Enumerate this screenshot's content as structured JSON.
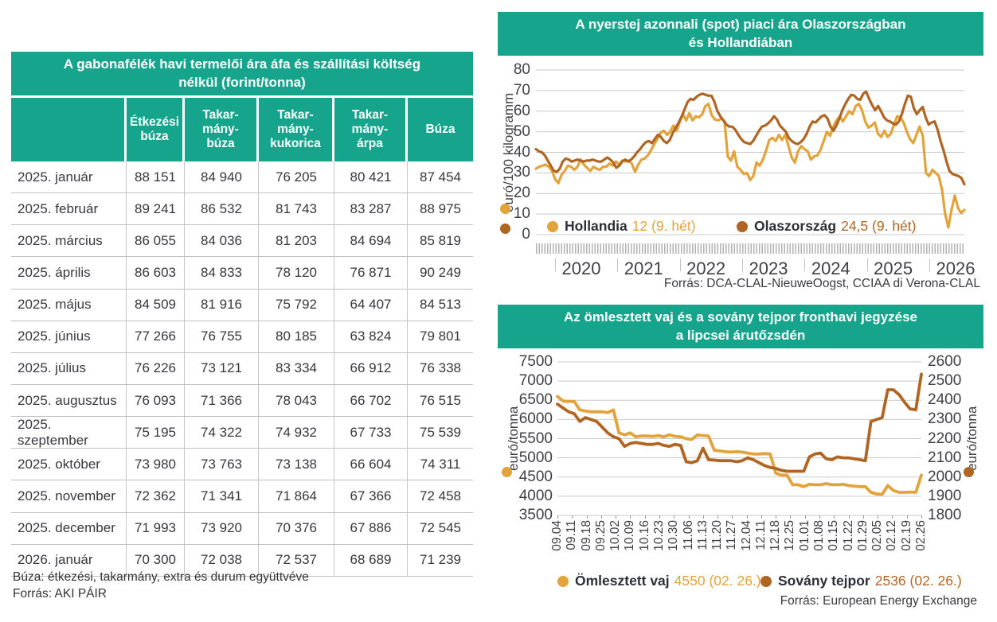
{
  "colors": {
    "teal": "#17A48C",
    "light": "#E3A33B",
    "dark": "#B16522",
    "grid": "#c9c9c9",
    "tick_text": "#3F3F46",
    "legend_name": "#2E2E38"
  },
  "chart_data": [
    {
      "type": "table",
      "title": "A gabonafélék havi termelői ára áfa és szállítási költség\nnélkül (forint/tonna)",
      "columns": [
        "",
        "Étkezési\nbúza",
        "Takar-\nmány-\nbúza",
        "Takar-\nmány-\nkukorica",
        "Takar-\nmány-\nárpa",
        "Búza"
      ],
      "rows": [
        {
          "label": "2025. január",
          "values": [
            "88 151",
            "84 940",
            "76 205",
            "80 421",
            "87 454"
          ]
        },
        {
          "label": "2025. február",
          "values": [
            "89 241",
            "86 532",
            "81 743",
            "83 287",
            "88 975"
          ]
        },
        {
          "label": "2025. március",
          "values": [
            "86 055",
            "84 036",
            "81 203",
            "84 694",
            "85 819"
          ]
        },
        {
          "label": "2025. április",
          "values": [
            "86 603",
            "84 833",
            "78 120",
            "76 871",
            "90 249"
          ]
        },
        {
          "label": "2025. május",
          "values": [
            "84 509",
            "81 916",
            "75 792",
            "64 407",
            "84 513"
          ]
        },
        {
          "label": "2025. június",
          "values": [
            "77 266",
            "76 755",
            "80 185",
            "63 824",
            "79 801"
          ]
        },
        {
          "label": "2025. július",
          "values": [
            "76 226",
            "73 121",
            "83 334",
            "66 912",
            "76 338"
          ]
        },
        {
          "label": "2025. augusztus",
          "values": [
            "76 093",
            "71 366",
            "78 043",
            "66 702",
            "76 515"
          ]
        },
        {
          "label": "2025. szeptember",
          "values": [
            "75 195",
            "74 322",
            "74 932",
            "67 733",
            "75 539"
          ]
        },
        {
          "label": "2025. október",
          "values": [
            "73 980",
            "73 763",
            "73 138",
            "66 604",
            "74 311"
          ]
        },
        {
          "label": "2025. november",
          "values": [
            "72 362",
            "71 341",
            "71 864",
            "67 366",
            "72 458"
          ]
        },
        {
          "label": "2025. december",
          "values": [
            "71 993",
            "73 920",
            "70 376",
            "67 886",
            "72 545"
          ]
        },
        {
          "label": "2026. január",
          "values": [
            "70 300",
            "72 038",
            "72 537",
            "68 689",
            "71 239"
          ]
        }
      ],
      "footnote": "Búza: étkezési, takarmány, extra és durum együttvéve",
      "source": "Forrás: AKI PÁIR"
    },
    {
      "type": "line",
      "title": "A nyerstej azonnali (spot) piaci ára Olaszországban\nés Hollandiában",
      "ylabel": "euró/100 kilogramm",
      "ylim": [
        0,
        80
      ],
      "yticks": [
        80,
        70,
        60,
        50,
        40,
        30,
        20,
        10,
        0
      ],
      "xticklabels": [
        "2020",
        "2021",
        "2022",
        "2023",
        "2024",
        "2025",
        "2026"
      ],
      "grid": true,
      "legend_position": "bottom-inside",
      "legend": [
        {
          "name": "Hollandia",
          "value_label": "12 (9. hét)",
          "color": "light"
        },
        {
          "name": "Olaszország",
          "value_label": "24,5  (9. hét)",
          "color": "dark"
        }
      ],
      "source": "Forrás: DCA-CLAL-NieuweOogst, CCIAA di Verona-CLAL",
      "series": [
        {
          "name": "Hollandia",
          "color": "light",
          "axis": "left",
          "values": [
            32,
            33,
            33.5,
            34,
            33,
            31,
            27,
            25,
            29,
            31,
            33.5,
            33,
            31.5,
            33,
            36.5,
            34,
            32.5,
            31,
            33,
            32,
            31.5,
            33,
            33,
            34.5,
            33.5,
            35.5,
            34,
            36,
            35.5,
            36,
            34.5,
            30.5,
            34,
            36.5,
            37,
            38.5,
            41,
            44,
            46.5,
            49.5,
            50.5,
            48.5,
            50,
            53,
            50.5,
            55,
            58.5,
            55.5,
            59,
            55.5,
            57.5,
            57,
            58.5,
            62.5,
            63.5,
            58,
            56,
            55.5,
            56.5,
            55,
            38,
            36,
            40.5,
            33,
            31.5,
            29.5,
            30,
            26.5,
            28.5,
            35,
            33.5,
            36.5,
            41,
            46,
            47,
            45.5,
            48.5,
            46,
            48.5,
            43,
            37.5,
            35,
            40.5,
            43,
            41.5,
            40.5,
            36.5,
            38,
            38.5,
            41,
            45.5,
            50,
            48,
            52.5,
            55.5,
            57.5,
            55,
            57.5,
            60,
            58.5,
            62.5,
            63.5,
            60.5,
            55,
            52,
            53,
            54.5,
            49,
            47.5,
            50.5,
            47.5,
            49,
            53.5,
            57.5,
            57,
            54.5,
            50,
            46.5,
            44.5,
            48.5,
            52.5,
            48,
            30,
            28.5,
            31.5,
            30,
            28.5,
            22,
            10,
            3.5,
            12,
            19,
            13,
            10.5,
            12
          ]
        },
        {
          "name": "Olaszország",
          "color": "dark",
          "axis": "left",
          "values": [
            41.5,
            40.5,
            40,
            38.5,
            36,
            33.5,
            31,
            30.5,
            32,
            35.5,
            37,
            36.5,
            35.5,
            36,
            36.5,
            36,
            35.5,
            36,
            36,
            36.5,
            36,
            35.5,
            35.5,
            36.5,
            37.5,
            36.5,
            35,
            32.5,
            33.5,
            35.5,
            36.5,
            35.5,
            36.5,
            38,
            40,
            41.5,
            43.5,
            45,
            45.5,
            44.5,
            46.5,
            48.5,
            47.5,
            45.5,
            44.5,
            46,
            49.5,
            52,
            54.5,
            57.5,
            61,
            64.5,
            66,
            65.5,
            67,
            68,
            68.5,
            68,
            67.5,
            67.5,
            64.5,
            60,
            57.5,
            55.5,
            53.5,
            52.5,
            52.5,
            51,
            48.5,
            46.5,
            45,
            44.5,
            44,
            45.5,
            48,
            50.5,
            52.5,
            53,
            54,
            55.5,
            57.5,
            56,
            53,
            51.5,
            50,
            47,
            45.5,
            44.5,
            44,
            45,
            46.5,
            49,
            52.5,
            55,
            54.5,
            56,
            57.5,
            58,
            56.5,
            52.5,
            50.5,
            53,
            56.5,
            60.5,
            63.5,
            66,
            68,
            67.5,
            66,
            65.5,
            68.5,
            69.5,
            66,
            63,
            60.5,
            62.5,
            60,
            57,
            55.5,
            55,
            54,
            53.5,
            55,
            58.5,
            63.5,
            67.5,
            67,
            61.5,
            58.5,
            60.5,
            62,
            57,
            53.5,
            54.5,
            55,
            51,
            45.5,
            41,
            35.5,
            31,
            29.5,
            29,
            28.5,
            27.5,
            24.5
          ]
        }
      ]
    },
    {
      "type": "line",
      "title": "Az ömlesztett vaj és a sovány tejpor fronthavi jegyzése\na lipcsei árutőzsdén",
      "axes": {
        "left": {
          "label": "euró/tonna",
          "min": 3500,
          "max": 7500,
          "ticks": [
            7500,
            7000,
            6500,
            6000,
            5500,
            5000,
            4500,
            4000,
            3500
          ]
        },
        "right": {
          "label": "euró/tonna",
          "min": 1800,
          "max": 2600,
          "ticks": [
            2600,
            2500,
            2400,
            2300,
            2200,
            2100,
            2000,
            1900,
            1800
          ]
        }
      },
      "xticklabels": [
        "09.04",
        "09.11",
        "09.18",
        "09.25",
        "10.02",
        "10.09",
        "10.16",
        "10.23",
        "10.30",
        "11.06",
        "11.13",
        "11.20",
        "11.27",
        "12.04",
        "12.11",
        "12.18",
        "12.25",
        "01.01",
        "01.08",
        "01.15",
        "01.22",
        "01.29",
        "02.05",
        "02.12",
        "02.19",
        "02.26"
      ],
      "grid": true,
      "legend": [
        {
          "name": "Ömlesztett vaj",
          "value_label": "4550 (02. 26.)",
          "color": "light"
        },
        {
          "name": "Sovány tejpor",
          "value_label": "2536 (02. 26.)",
          "color": "dark"
        }
      ],
      "source": "Forrás: European Energy Exchange",
      "series": [
        {
          "name": "Ömlesztett vaj",
          "color": "light",
          "axis": "left",
          "values": [
            6600,
            6480,
            6470,
            6470,
            6250,
            6220,
            6200,
            6200,
            6200,
            6180,
            6250,
            5650,
            5600,
            5650,
            5550,
            5570,
            5570,
            5560,
            5580,
            5550,
            5600,
            5560,
            5550,
            5500,
            5480,
            5600,
            5580,
            5570,
            5200,
            5180,
            5160,
            5150,
            5160,
            5150,
            5120,
            5100,
            5100,
            5110,
            5100,
            4600,
            4550,
            4550,
            4300,
            4300,
            4250,
            4310,
            4300,
            4300,
            4330,
            4300,
            4300,
            4310,
            4280,
            4260,
            4250,
            4250,
            4100,
            4060,
            4050,
            4280,
            4150,
            4100,
            4100,
            4110,
            4100,
            4550
          ]
        },
        {
          "name": "Sovány tejpor",
          "color": "dark",
          "axis": "right",
          "values": [
            2380,
            2360,
            2340,
            2330,
            2290,
            2310,
            2300,
            2290,
            2260,
            2230,
            2210,
            2200,
            2160,
            2175,
            2180,
            2175,
            2170,
            2170,
            2175,
            2165,
            2160,
            2170,
            2165,
            2080,
            2075,
            2085,
            2150,
            2090,
            2088,
            2085,
            2085,
            2085,
            2080,
            2085,
            2100,
            2090,
            2075,
            2060,
            2050,
            2045,
            2035,
            2030,
            2030,
            2030,
            2030,
            2105,
            2120,
            2125,
            2095,
            2090,
            2105,
            2100,
            2100,
            2095,
            2090,
            2085,
            2290,
            2300,
            2310,
            2455,
            2455,
            2430,
            2390,
            2355,
            2350,
            2536
          ]
        }
      ]
    }
  ]
}
